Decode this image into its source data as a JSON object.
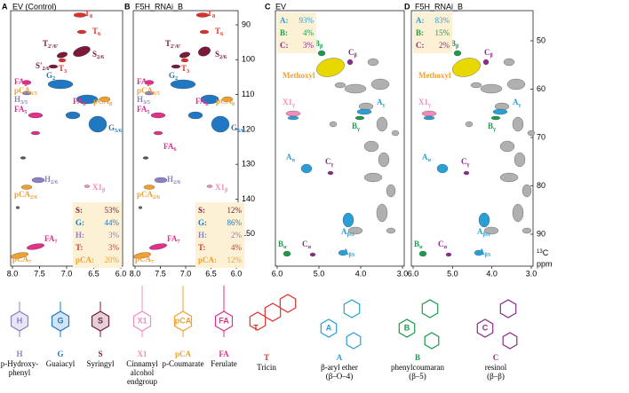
{
  "panels": [
    {
      "letter": "A",
      "title": "EV (Control)",
      "xticks": [
        "8.0",
        "7.5",
        "7.0",
        "6.5",
        "6.0"
      ],
      "peaks": [
        {
          "text": "T",
          "sub": "8"
        },
        {
          "text": "T",
          "sub": "6"
        },
        {
          "text": "T",
          "sub": "2'/6'"
        },
        {
          "text": "S",
          "sub": "2/6"
        },
        {
          "text": "S'",
          "sub": "2/6"
        },
        {
          "text": "T",
          "sub": "3"
        },
        {
          "text": "G",
          "sub": "2"
        },
        {
          "text": "FA",
          "sub": "2"
        },
        {
          "text": "pCA",
          "sub": "3/5"
        },
        {
          "text": "H",
          "sub": "3/5"
        },
        {
          "text": "FA",
          "sub": "5"
        },
        {
          "text": "FA",
          "sub": "8"
        },
        {
          "text": "pCA",
          "sub": "8"
        },
        {
          "text": "G",
          "sub": "5/6"
        },
        {
          "text": "H",
          "sub": "2/6"
        },
        {
          "text": "X1",
          "sub": "β"
        },
        {
          "text": "pCA",
          "sub": "2/6"
        },
        {
          "text": "FA",
          "sub": "7"
        },
        {
          "text": "pCA",
          "sub": "7"
        }
      ],
      "legend": [
        {
          "key": "S:",
          "value": "53%"
        },
        {
          "key": "G:",
          "value": "44%"
        },
        {
          "key": "H:",
          "value": "3%"
        },
        {
          "key": "T:",
          "value": "3%"
        },
        {
          "key": "pCA:",
          "value": "20%"
        }
      ]
    },
    {
      "letter": "B",
      "title": "F5H_RNAi_B",
      "xticks": [
        "8.0",
        "7.5",
        "7.0",
        "6.5",
        "6.0"
      ],
      "peaks": [
        {
          "text": "T",
          "sub": "8"
        },
        {
          "text": "T",
          "sub": "6"
        },
        {
          "text": "T",
          "sub": "2'/6'"
        },
        {
          "text": "S",
          "sub": "2/6"
        },
        {
          "text": "T",
          "sub": "3"
        },
        {
          "text": "G",
          "sub": "2"
        },
        {
          "text": "FA",
          "sub": "2"
        },
        {
          "text": "pCA",
          "sub": "3/5"
        },
        {
          "text": "H",
          "sub": "3/5"
        },
        {
          "text": "FA",
          "sub": "5"
        },
        {
          "text": "FA",
          "sub": "8"
        },
        {
          "text": "pCA",
          "sub": "8"
        },
        {
          "text": "G",
          "sub": "5/6"
        },
        {
          "text": "FA",
          "sub": "6"
        },
        {
          "text": "H",
          "sub": "2/6"
        },
        {
          "text": "X1",
          "sub": "β"
        },
        {
          "text": "pCA",
          "sub": "2/6"
        },
        {
          "text": "FA",
          "sub": "7"
        },
        {
          "text": "pCA",
          "sub": "7"
        }
      ],
      "legend": [
        {
          "key": "S:",
          "value": "12%"
        },
        {
          "key": "G:",
          "value": "86%"
        },
        {
          "key": "H:",
          "value": "2%"
        },
        {
          "key": "T:",
          "value": "4%"
        },
        {
          "key": "pCA:",
          "value": "12%"
        }
      ]
    },
    {
      "letter": "C",
      "title": "EV",
      "xticks": [
        "6.0",
        "5.0",
        "4.0",
        "3.0"
      ],
      "peaks": [
        {
          "text": "B",
          "sub": "β"
        },
        {
          "text": "C",
          "sub": "β"
        },
        {
          "text": "Methoxyl",
          "sub": ""
        },
        {
          "text": "X1",
          "sub": "γ"
        },
        {
          "text": "A",
          "sub": "γ"
        },
        {
          "text": "B",
          "sub": "γ"
        },
        {
          "text": "A",
          "sub": "α"
        },
        {
          "text": "C",
          "sub": "γ"
        },
        {
          "text": "A",
          "sub": "βG"
        },
        {
          "text": "B",
          "sub": "α"
        },
        {
          "text": "C",
          "sub": "α"
        },
        {
          "text": "A",
          "sub": "βS"
        }
      ],
      "legend": [
        {
          "key": "A:",
          "value": "93%"
        },
        {
          "key": "B:",
          "value": "4%"
        },
        {
          "key": "C:",
          "value": "3%"
        }
      ]
    },
    {
      "letter": "D",
      "title": "F5H_RNAi_B",
      "xticks": [
        "6.0",
        "5.0",
        "4.0",
        "3.0"
      ],
      "peaks": [
        {
          "text": "B",
          "sub": "β"
        },
        {
          "text": "C",
          "sub": "β"
        },
        {
          "text": "Methoxyl",
          "sub": ""
        },
        {
          "text": "X1",
          "sub": "γ"
        },
        {
          "text": "A",
          "sub": "γ"
        },
        {
          "text": "B",
          "sub": "γ"
        },
        {
          "text": "A",
          "sub": "α"
        },
        {
          "text": "C",
          "sub": "γ"
        },
        {
          "text": "A",
          "sub": "βG"
        },
        {
          "text": "B",
          "sub": "α"
        },
        {
          "text": "C",
          "sub": "α"
        },
        {
          "text": "A",
          "sub": "βS"
        }
      ],
      "legend": [
        {
          "key": "A:",
          "value": "83%"
        },
        {
          "key": "B:",
          "value": "15%"
        },
        {
          "key": "C:",
          "value": "2%"
        }
      ]
    }
  ],
  "aromatic_axis": {
    "ticks": [
      "90",
      "100",
      "110",
      "120",
      "130",
      "140",
      "150"
    ]
  },
  "aliphatic_axis": {
    "ticks": [
      "50",
      "60",
      "70",
      "80",
      "90"
    ],
    "nucleus_mass": "13",
    "nucleus": "C",
    "unit": "ppm"
  },
  "structures": [
    {
      "symbol": "H",
      "name": [
        "p-Hydroxy-",
        "phenyl"
      ]
    },
    {
      "symbol": "G",
      "name": [
        "Guaiacyl"
      ]
    },
    {
      "symbol": "S",
      "name": [
        "Syringyl"
      ]
    },
    {
      "symbol": "X1",
      "name": [
        "Cinnamyl",
        "alcohol",
        "endgroup"
      ]
    },
    {
      "symbol": "pCA",
      "name": [
        "p-Coumarate"
      ]
    },
    {
      "symbol": "FA",
      "name": [
        "Ferulate"
      ]
    },
    {
      "symbol": "T",
      "name": [
        "Tricin"
      ]
    },
    {
      "symbol": "A",
      "name": [
        "β-aryl ether",
        "(β–O–4)"
      ]
    },
    {
      "symbol": "B",
      "name": [
        "phenylcoumaran",
        "(β–5)"
      ]
    },
    {
      "symbol": "C",
      "name": [
        "resinol",
        "(β–β)"
      ]
    }
  ]
}
